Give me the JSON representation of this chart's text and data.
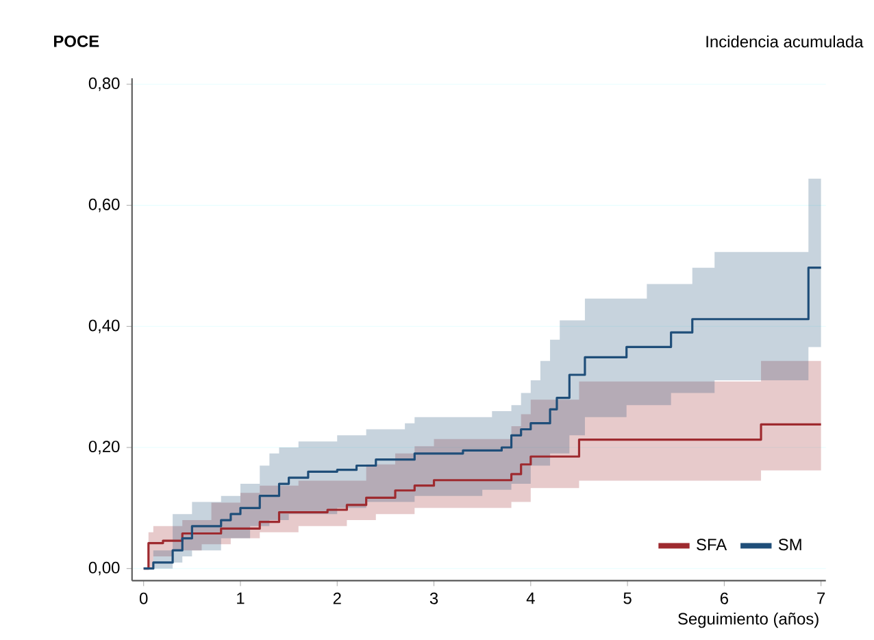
{
  "chart_data": {
    "type": "step",
    "title": "POCE",
    "subtitle": "Incidencia acumulada",
    "xlabel": "Seguimiento (años)",
    "xlim": [
      -0.12,
      7.05
    ],
    "ylim": [
      -0.02,
      0.81
    ],
    "xticks": [
      0,
      1,
      2,
      3,
      4,
      5,
      6,
      7
    ],
    "yticks": [
      {
        "value": 0,
        "label": "0,00"
      },
      {
        "value": 0.2,
        "label": "0,20"
      },
      {
        "value": 0.4,
        "label": "0,40"
      },
      {
        "value": 0.6,
        "label": "0,60"
      },
      {
        "value": 0.8,
        "label": "0,80"
      }
    ],
    "grid": "y",
    "legend": "bottom right",
    "marker": "none",
    "line_style": "solid",
    "series": [
      {
        "name": "SFA",
        "color": "#9e2a2f",
        "x": [
          0,
          0.05,
          0.1,
          0.2,
          0.3,
          0.4,
          0.6,
          0.7,
          0.8,
          0.9,
          1.0,
          1.2,
          1.4,
          1.6,
          1.9,
          2.1,
          2.3,
          2.4,
          2.6,
          2.8,
          3.0,
          3.8,
          3.9,
          4.0,
          4.5,
          6.38,
          7.0
        ],
        "values": [
          0,
          0.042,
          0.042,
          0.046,
          0.046,
          0.058,
          0.058,
          0.058,
          0.066,
          0.066,
          0.066,
          0.077,
          0.093,
          0.093,
          0.097,
          0.105,
          0.117,
          0.117,
          0.129,
          0.137,
          0.146,
          0.156,
          0.172,
          0.185,
          0.213,
          0.238,
          0.238
        ],
        "upper": [
          0,
          0.06,
          0.07,
          0.07,
          0.07,
          0.08,
          0.08,
          0.109,
          0.109,
          0.109,
          0.125,
          0.137,
          0.137,
          0.145,
          0.145,
          0.145,
          0.172,
          0.172,
          0.19,
          0.202,
          0.214,
          0.235,
          0.255,
          0.279,
          0.309,
          0.343,
          0.343
        ],
        "lower": [
          0,
          0,
          0.02,
          0.02,
          0.03,
          0.03,
          0.04,
          0.04,
          0.04,
          0.05,
          0.05,
          0.06,
          0.06,
          0.07,
          0.07,
          0.08,
          0.08,
          0.09,
          0.09,
          0.1,
          0.1,
          0.11,
          0.11,
          0.133,
          0.145,
          0.162,
          0.162
        ]
      },
      {
        "name": "SM",
        "color": "#1f4e79",
        "x": [
          0,
          0.1,
          0.3,
          0.4,
          0.5,
          0.8,
          0.9,
          1.0,
          1.1,
          1.2,
          1.3,
          1.4,
          1.5,
          1.6,
          1.7,
          2.0,
          2.2,
          2.3,
          2.4,
          2.7,
          2.8,
          3.3,
          3.5,
          3.6,
          3.7,
          3.8,
          3.9,
          4.0,
          4.1,
          4.2,
          4.27,
          4.3,
          4.4,
          4.56,
          4.99,
          5.2,
          5.45,
          5.67,
          5.9,
          6.87,
          7.0
        ],
        "values": [
          0,
          0.01,
          0.03,
          0.05,
          0.07,
          0.08,
          0.09,
          0.1,
          0.1,
          0.12,
          0.12,
          0.14,
          0.15,
          0.15,
          0.16,
          0.163,
          0.17,
          0.17,
          0.18,
          0.18,
          0.19,
          0.195,
          0.195,
          0.195,
          0.2,
          0.22,
          0.23,
          0.24,
          0.24,
          0.263,
          0.282,
          0.282,
          0.32,
          0.349,
          0.366,
          0.366,
          0.39,
          0.412,
          0.412,
          0.497,
          0.497
        ],
        "upper": [
          0,
          0.03,
          0.09,
          0.09,
          0.11,
          0.12,
          0.12,
          0.14,
          0.14,
          0.17,
          0.19,
          0.2,
          0.2,
          0.21,
          0.21,
          0.22,
          0.22,
          0.23,
          0.23,
          0.24,
          0.25,
          0.25,
          0.25,
          0.26,
          0.26,
          0.27,
          0.29,
          0.311,
          0.343,
          0.378,
          0.378,
          0.41,
          0.41,
          0.446,
          0.446,
          0.47,
          0.47,
          0.497,
          0.523,
          0.644,
          0.644
        ],
        "lower": [
          0,
          0,
          0.01,
          0.02,
          0.03,
          0.05,
          0.05,
          0.05,
          0.07,
          0.07,
          0.08,
          0.08,
          0.09,
          0.09,
          0.09,
          0.1,
          0.1,
          0.11,
          0.11,
          0.11,
          0.12,
          0.12,
          0.13,
          0.13,
          0.13,
          0.14,
          0.14,
          0.17,
          0.17,
          0.19,
          0.19,
          0.19,
          0.22,
          0.25,
          0.27,
          0.27,
          0.29,
          0.29,
          0.311,
          0.366,
          0.366
        ]
      }
    ]
  }
}
